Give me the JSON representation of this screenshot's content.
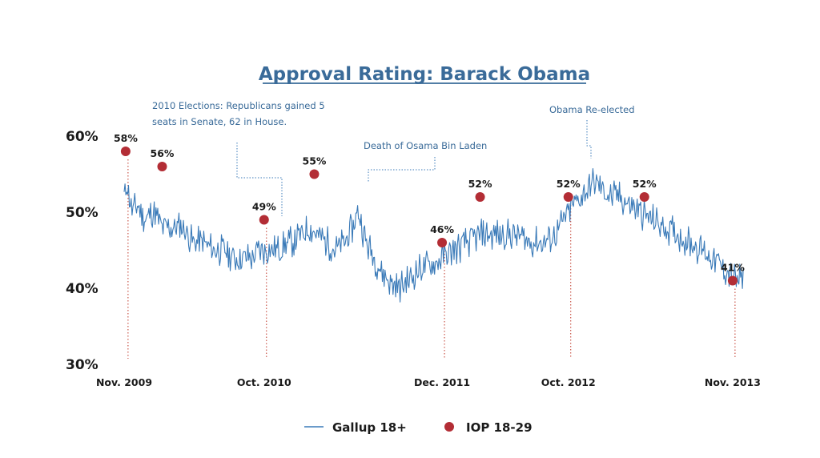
{
  "chart_data": {
    "type": "line",
    "title": "Approval Rating: Barack Obama",
    "ylim": [
      30,
      60
    ],
    "yticks": [
      "30%",
      "40%",
      "50%",
      "60%"
    ],
    "xlim": [
      2009.83,
      2013.92
    ],
    "xticks": [
      {
        "label": "Nov. 2009",
        "x": 2009.83
      },
      {
        "label": "Oct. 2010",
        "x": 2010.75
      },
      {
        "label": "Dec. 2011",
        "x": 2011.92
      },
      {
        "label": "Oct. 2012",
        "x": 2012.75
      },
      {
        "label": "Nov. 2013",
        "x": 2013.83
      }
    ],
    "series": [
      {
        "name": "Gallup 18+",
        "kind": "line",
        "color": "#3a7ab8",
        "points": [
          [
            2009.83,
            52
          ],
          [
            2009.85,
            54
          ],
          [
            2009.88,
            50
          ],
          [
            2009.92,
            51
          ],
          [
            2009.97,
            49
          ],
          [
            2010.02,
            50
          ],
          [
            2010.08,
            48
          ],
          [
            2010.15,
            48
          ],
          [
            2010.22,
            48
          ],
          [
            2010.28,
            46
          ],
          [
            2010.35,
            46
          ],
          [
            2010.42,
            45
          ],
          [
            2010.5,
            45
          ],
          [
            2010.55,
            44
          ],
          [
            2010.6,
            44
          ],
          [
            2010.67,
            44
          ],
          [
            2010.72,
            45
          ],
          [
            2010.78,
            45
          ],
          [
            2010.85,
            45
          ],
          [
            2010.92,
            46
          ],
          [
            2011.0,
            47
          ],
          [
            2011.05,
            48
          ],
          [
            2011.1,
            47
          ],
          [
            2011.17,
            46
          ],
          [
            2011.22,
            45
          ],
          [
            2011.28,
            46
          ],
          [
            2011.33,
            48
          ],
          [
            2011.37,
            50
          ],
          [
            2011.42,
            46
          ],
          [
            2011.5,
            43
          ],
          [
            2011.57,
            41
          ],
          [
            2011.63,
            40
          ],
          [
            2011.7,
            41
          ],
          [
            2011.75,
            42
          ],
          [
            2011.8,
            43
          ],
          [
            2011.87,
            43
          ],
          [
            2011.92,
            44
          ],
          [
            2012.0,
            45
          ],
          [
            2012.08,
            46
          ],
          [
            2012.17,
            47
          ],
          [
            2012.25,
            47
          ],
          [
            2012.33,
            47
          ],
          [
            2012.42,
            47
          ],
          [
            2012.5,
            46
          ],
          [
            2012.58,
            46
          ],
          [
            2012.67,
            47
          ],
          [
            2012.72,
            49
          ],
          [
            2012.78,
            51
          ],
          [
            2012.83,
            52
          ],
          [
            2012.88,
            53
          ],
          [
            2012.92,
            54
          ],
          [
            2012.97,
            53
          ],
          [
            2013.03,
            52
          ],
          [
            2013.08,
            52
          ],
          [
            2013.15,
            51
          ],
          [
            2013.22,
            50
          ],
          [
            2013.3,
            49
          ],
          [
            2013.38,
            48
          ],
          [
            2013.47,
            47
          ],
          [
            2013.55,
            46
          ],
          [
            2013.63,
            45
          ],
          [
            2013.7,
            44
          ],
          [
            2013.75,
            43
          ],
          [
            2013.8,
            42
          ],
          [
            2013.85,
            41
          ],
          [
            2013.9,
            41
          ]
        ]
      },
      {
        "name": "IOP 18-29",
        "kind": "scatter",
        "color": "#b32d35",
        "points": [
          {
            "x": 2009.84,
            "y": 58,
            "label": "58%"
          },
          {
            "x": 2010.08,
            "y": 56,
            "label": "56%"
          },
          {
            "x": 2010.75,
            "y": 49,
            "label": "49%"
          },
          {
            "x": 2011.08,
            "y": 55,
            "label": "55%"
          },
          {
            "x": 2011.92,
            "y": 46,
            "label": "46%"
          },
          {
            "x": 2012.17,
            "y": 52,
            "label": "52%"
          },
          {
            "x": 2012.75,
            "y": 52,
            "label": "52%"
          },
          {
            "x": 2013.25,
            "y": 52,
            "label": "52%"
          },
          {
            "x": 2013.83,
            "y": 41,
            "label": "41%"
          }
        ]
      }
    ],
    "annotations": [
      {
        "lines": [
          "2010 Elections: Republicans gained 5",
          "seats in Senate, 62 in House."
        ],
        "x": 2010.75
      },
      {
        "lines": [
          "Death of Osama Bin Laden"
        ],
        "x": 2011.33
      },
      {
        "lines": [
          "Obama Re-elected"
        ],
        "x": 2012.83
      }
    ],
    "legend": {
      "placement": "bottom",
      "items": [
        "Gallup 18+",
        "IOP 18-29"
      ]
    },
    "grid": false
  }
}
